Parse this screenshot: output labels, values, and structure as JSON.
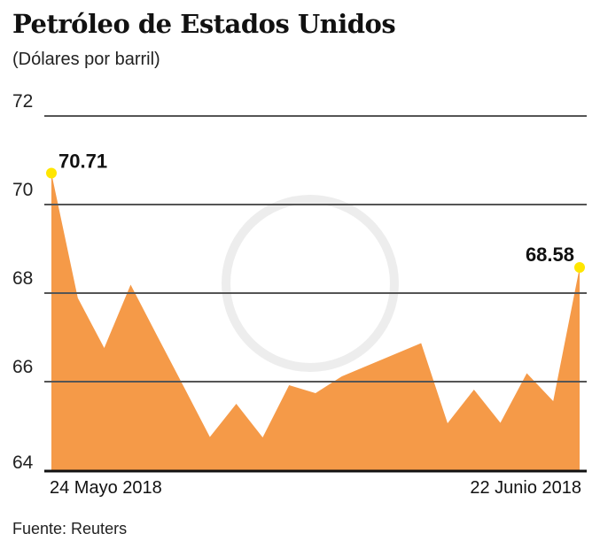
{
  "chart_data": {
    "type": "area",
    "title": "Petróleo de Estados Unidos",
    "subtitle": "(Dólares por barril)",
    "source": "Fuente: Reuters",
    "x_labels": [
      "24 Mayo 2018",
      "22 Junio 2018"
    ],
    "values": [
      70.71,
      67.89,
      66.76,
      68.19,
      67.04,
      65.9,
      64.75,
      65.5,
      64.74,
      65.92,
      65.74,
      66.12,
      66.37,
      66.62,
      66.87,
      65.06,
      65.82,
      65.07,
      66.19,
      65.56,
      68.58
    ],
    "annotations": [
      {
        "index": 0,
        "label": "70.71"
      },
      {
        "index": 20,
        "label": "68.58"
      }
    ],
    "ylim": [
      64,
      72
    ],
    "yticks": [
      64,
      66,
      68,
      70,
      72
    ],
    "grid": true,
    "fill_color": "#F59A48",
    "marker_color": "#FFE600"
  }
}
